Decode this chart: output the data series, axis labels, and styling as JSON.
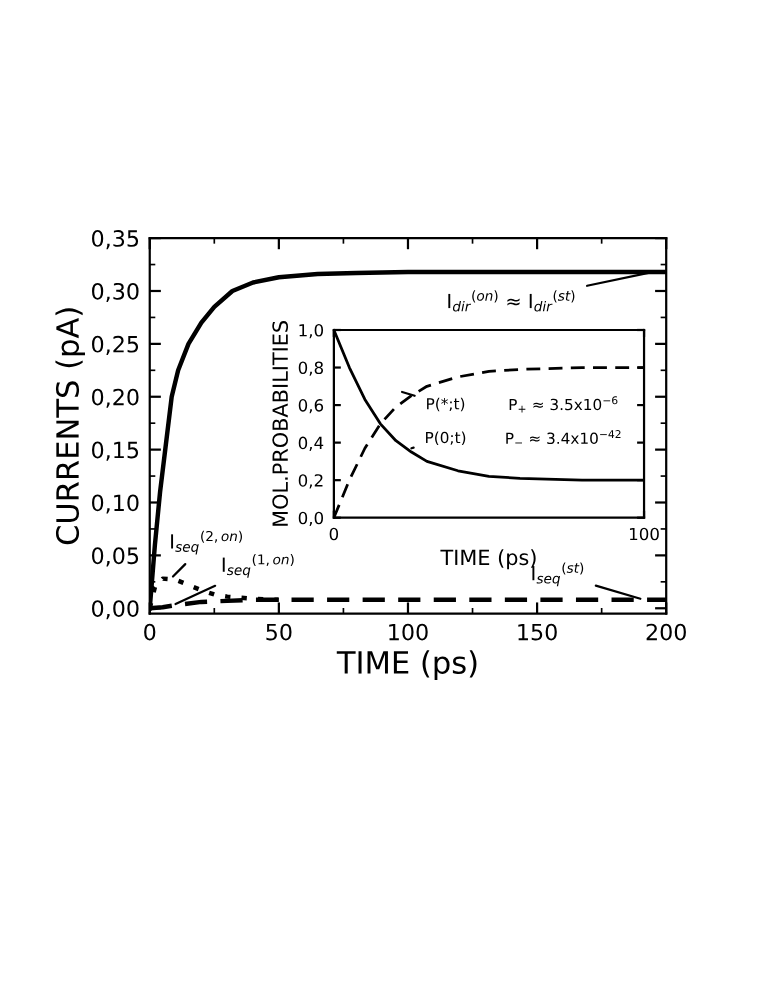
{
  "chart_data": [
    {
      "type": "line",
      "xlabel": "TIME (ps)",
      "ylabel": "CURRENTS (pA)",
      "xlim": [
        0,
        200
      ],
      "ylim": [
        -0.005,
        0.35
      ],
      "xticks": [
        0,
        50,
        100,
        150,
        200
      ],
      "yticks": [
        {
          "value": 0.0,
          "label": "0,00"
        },
        {
          "value": 0.05,
          "label": "0,05"
        },
        {
          "value": 0.1,
          "label": "0,10"
        },
        {
          "value": 0.15,
          "label": "0,15"
        },
        {
          "value": 0.2,
          "label": "0,20"
        },
        {
          "value": 0.25,
          "label": "0,25"
        },
        {
          "value": 0.3,
          "label": "0,30"
        },
        {
          "value": 0.35,
          "label": "0,35"
        }
      ],
      "grid": false,
      "legend": false,
      "marker": "none",
      "series": [
        {
          "color": "#000000",
          "line_style": "solid",
          "x": [
            0,
            2,
            4,
            6,
            8.5,
            11,
            15,
            20,
            25,
            32,
            40,
            50,
            65,
            80,
            100,
            200
          ],
          "values": [
            0,
            0.06,
            0.11,
            0.15,
            0.2,
            0.225,
            0.25,
            0.27,
            0.285,
            0.3,
            0.308,
            0.313,
            0.316,
            0.317,
            0.318,
            0.318
          ]
        },
        {
          "color": "#000000",
          "line_style": "dotted",
          "x": [
            0,
            2,
            5,
            10,
            15,
            20,
            25,
            30,
            40,
            50
          ],
          "values": [
            0,
            0.02,
            0.028,
            0.027,
            0.022,
            0.017,
            0.013,
            0.011,
            0.009,
            0.008
          ]
        },
        {
          "color": "#000000",
          "line_style": "dashed",
          "x": [
            0,
            5,
            10,
            20,
            30,
            40,
            200
          ],
          "values": [
            0,
            0.001,
            0.003,
            0.006,
            0.007,
            0.008,
            0.008
          ]
        }
      ],
      "annotations": [
        {
          "text": "I$_{dir}$$^{(on)}$ ≈ I$_{dir}$$^{(st)}$",
          "x": 195,
          "y": 0.318
        },
        {
          "text": "I$_{seq}$$^{(2,on)}$",
          "x": 9,
          "y": 0.03
        },
        {
          "text": "I$_{seq}$$^{(1,on)}$",
          "x": 10,
          "y": 0.004
        },
        {
          "text": "I$_{seq}$$^{(st)}$",
          "x": 190,
          "y": 0.009
        }
      ]
    },
    {
      "type": "line",
      "xlabel": "TIME (ps)",
      "ylabel": "MOL.PROBABILITIES",
      "xlim": [
        0,
        100
      ],
      "ylim": [
        0,
        1
      ],
      "xticks": [
        0,
        100
      ],
      "yticks": [
        {
          "value": 0.0,
          "label": "0,0"
        },
        {
          "value": 0.2,
          "label": "0,2"
        },
        {
          "value": 0.4,
          "label": "0,4"
        },
        {
          "value": 0.6,
          "label": "0,6"
        },
        {
          "value": 0.8,
          "label": "0,8"
        },
        {
          "value": 1.0,
          "label": "1,0"
        }
      ],
      "grid": false,
      "legend": false,
      "marker": "none",
      "series": [
        {
          "color": "#000000",
          "line_style": "solid",
          "x": [
            0,
            5,
            10,
            15,
            20,
            25,
            30,
            40,
            50,
            60,
            80,
            100
          ],
          "values": [
            1,
            0.8,
            0.63,
            0.5,
            0.41,
            0.35,
            0.3,
            0.25,
            0.22,
            0.21,
            0.2,
            0.2
          ]
        },
        {
          "color": "#000000",
          "line_style": "dashed",
          "x": [
            0,
            5,
            10,
            15,
            20,
            25,
            30,
            40,
            50,
            60,
            80,
            100
          ],
          "values": [
            0,
            0.2,
            0.37,
            0.5,
            0.59,
            0.65,
            0.7,
            0.75,
            0.78,
            0.79,
            0.8,
            0.8
          ]
        }
      ],
      "annotations": [
        {
          "text": "P(*;t)",
          "x": 22,
          "y": 0.67
        },
        {
          "text": "P(0;t)",
          "x": 25,
          "y": 0.37
        },
        "P$_{+}$ ≈ 3.5x10$^{−6}$",
        "P$_{−}$ ≈ 3.4x10$^{−42}$"
      ]
    }
  ]
}
